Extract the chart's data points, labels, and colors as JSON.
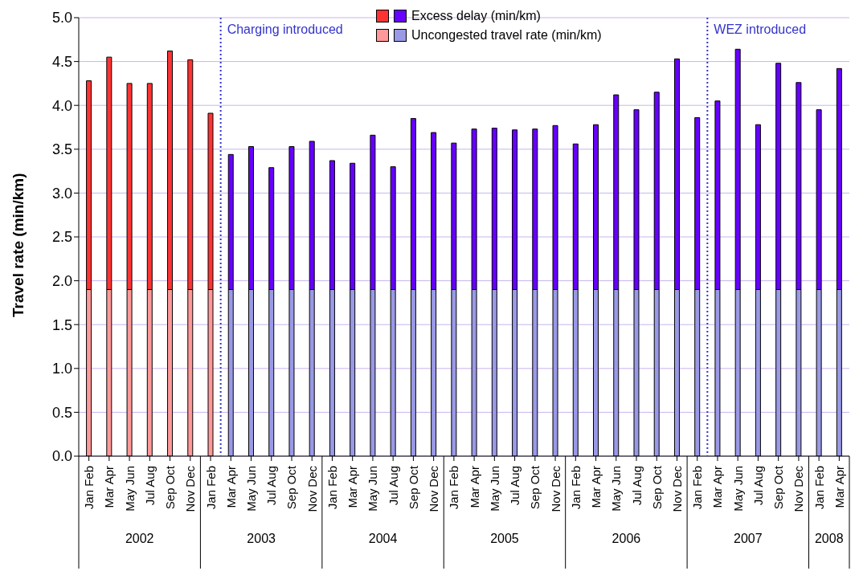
{
  "chart_data": {
    "type": "bar",
    "stacked": true,
    "ylabel": "Travel rate (min/km)",
    "categories": [
      "Jan Feb",
      "Mar Apr",
      "May Jun",
      "Jul Aug",
      "Sep Oct",
      "Nov Dec",
      "Jan Feb",
      "Mar Apr",
      "May Jun",
      "Jul Aug",
      "Sep Oct",
      "Nov Dec",
      "Jan Feb",
      "Mar Apr",
      "May Jun",
      "Jul Aug",
      "Sep Oct",
      "Nov Dec",
      "Jan Feb",
      "Mar Apr",
      "May Jun",
      "Jul Aug",
      "Sep Oct",
      "Nov Dec",
      "Jan Feb",
      "Mar Apr",
      "May Jun",
      "Jul Aug",
      "Sep Oct",
      "Nov Dec",
      "Jan Feb",
      "Mar Apr",
      "May Jun",
      "Jul Aug",
      "Sep Oct",
      "Nov Dec",
      "Jan Feb",
      "Mar Apr"
    ],
    "series": [
      {
        "name": "Uncongested travel rate (min/km)",
        "colors": [
          "#ff9999",
          "#ff9999",
          "#ff9999",
          "#ff9999",
          "#ff9999",
          "#ff9999",
          "#ff9999",
          "#9999e6",
          "#9999e6",
          "#9999e6",
          "#9999e6",
          "#9999e6",
          "#9999e6",
          "#9999e6",
          "#9999e6",
          "#9999e6",
          "#9999e6",
          "#9999e6",
          "#9999e6",
          "#9999e6",
          "#9999e6",
          "#9999e6",
          "#9999e6",
          "#9999e6",
          "#9999e6",
          "#9999e6",
          "#9999e6",
          "#9999e6",
          "#9999e6",
          "#9999e6",
          "#9999e6",
          "#9999e6",
          "#9999e6",
          "#9999e6",
          "#9999e6",
          "#9999e6",
          "#9999e6",
          "#9999e6"
        ],
        "values": [
          1.9,
          1.9,
          1.9,
          1.9,
          1.9,
          1.9,
          1.9,
          1.9,
          1.9,
          1.9,
          1.9,
          1.9,
          1.9,
          1.9,
          1.9,
          1.9,
          1.9,
          1.9,
          1.9,
          1.9,
          1.9,
          1.9,
          1.9,
          1.9,
          1.9,
          1.9,
          1.9,
          1.9,
          1.9,
          1.9,
          1.9,
          1.9,
          1.9,
          1.9,
          1.9,
          1.9,
          1.9,
          1.9
        ]
      },
      {
        "name": "Excess delay (min/km)",
        "colors": [
          "#ff3333",
          "#ff3333",
          "#ff3333",
          "#ff3333",
          "#ff3333",
          "#ff3333",
          "#ff3333",
          "#6600ff",
          "#6600ff",
          "#6600ff",
          "#6600ff",
          "#6600ff",
          "#6600ff",
          "#6600ff",
          "#6600ff",
          "#6600ff",
          "#6600ff",
          "#6600ff",
          "#6600ff",
          "#6600ff",
          "#6600ff",
          "#6600ff",
          "#6600ff",
          "#6600ff",
          "#6600ff",
          "#6600ff",
          "#6600ff",
          "#6600ff",
          "#6600ff",
          "#6600ff",
          "#6600ff",
          "#6600ff",
          "#6600ff",
          "#6600ff",
          "#6600ff",
          "#6600ff",
          "#6600ff",
          "#6600ff"
        ],
        "values": [
          2.38,
          2.65,
          2.35,
          2.35,
          2.72,
          2.62,
          2.01,
          1.54,
          1.63,
          1.39,
          1.63,
          1.69,
          1.47,
          1.44,
          1.76,
          1.4,
          1.95,
          1.79,
          1.67,
          1.83,
          1.84,
          1.82,
          1.83,
          1.87,
          1.66,
          1.88,
          2.22,
          2.05,
          2.25,
          2.63,
          1.96,
          2.15,
          2.74,
          1.88,
          2.58,
          2.36,
          2.05,
          2.52
        ]
      }
    ],
    "ylim": [
      0,
      5
    ],
    "yticks": [
      {
        "value": 0,
        "label": "0.0"
      },
      {
        "value": 0.5,
        "label": "0.5"
      },
      {
        "value": 1,
        "label": "1.0"
      },
      {
        "value": 1.5,
        "label": "1.5"
      },
      {
        "value": 2,
        "label": "2.0"
      },
      {
        "value": 2.5,
        "label": "2.5"
      },
      {
        "value": 3,
        "label": "3.0"
      },
      {
        "value": 3.5,
        "label": "3.5"
      },
      {
        "value": 4,
        "label": "4.0"
      },
      {
        "value": 4.5,
        "label": "4.5"
      },
      {
        "value": 5,
        "label": "5.0"
      }
    ],
    "grid": "y",
    "legend": "top",
    "annotations": [
      "Charging introduced",
      "WEZ introduced",
      "2002",
      "2003",
      "2004",
      "2005",
      "2006",
      "2007",
      "2008"
    ]
  }
}
